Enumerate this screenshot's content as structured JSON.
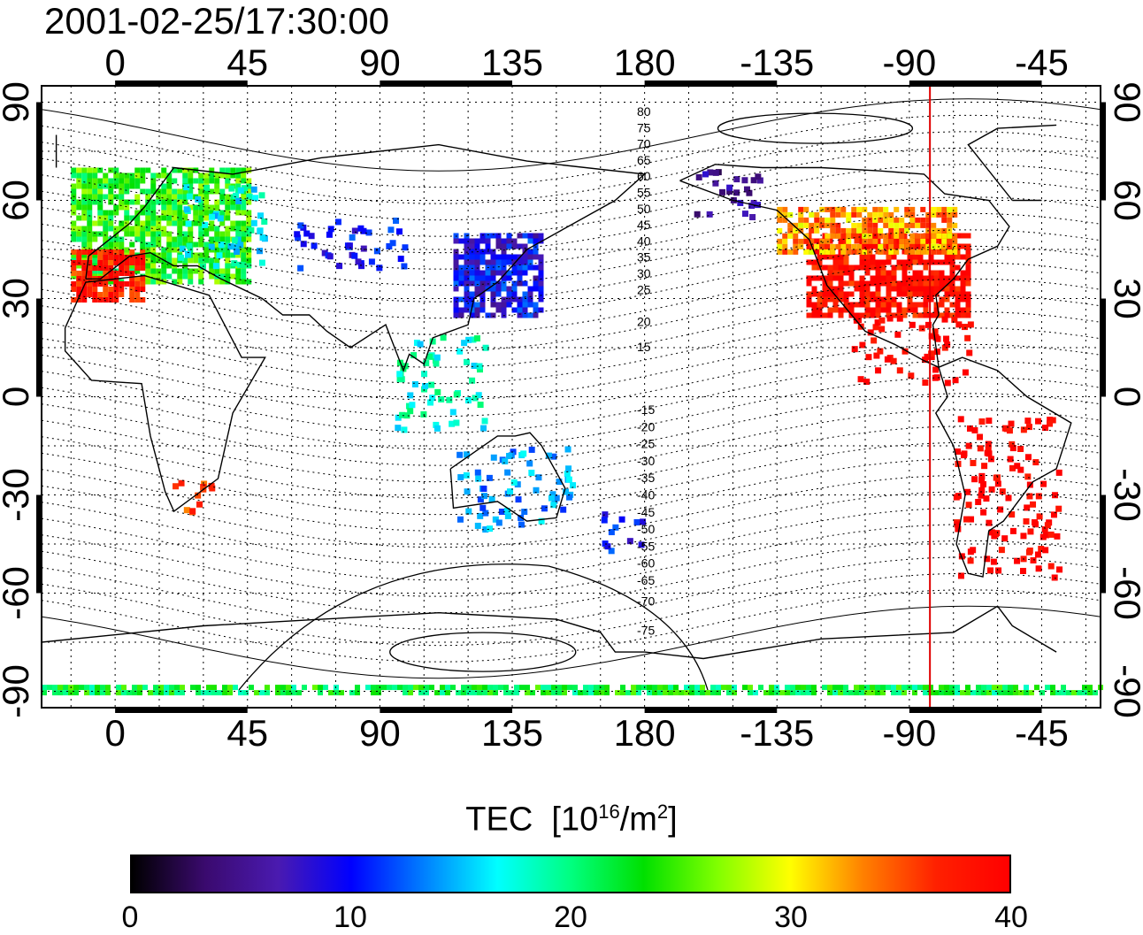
{
  "timestamp": "2001-02-25/17:30:00",
  "map": {
    "top_lon_ticks": [
      "0",
      "45",
      "90",
      "135",
      "180",
      "-135",
      "-90",
      "-45"
    ],
    "bottom_lon_ticks": [
      "0",
      "45",
      "90",
      "135",
      "180",
      "-135",
      "-90",
      "-45"
    ],
    "left_lat_ticks": [
      "90",
      "60",
      "30",
      "0",
      "-30",
      "-60",
      "-90"
    ],
    "right_lat_ticks": [
      "90",
      "60",
      "30",
      "0",
      "-30",
      "-60",
      "-90"
    ],
    "lon_range": [
      -25,
      335
    ],
    "lat_range": [
      -95,
      95
    ],
    "meridian_line_lon": -83,
    "meridian_line_color": "#e00000",
    "contour_labels_north": [
      "80",
      "75",
      "70",
      "65",
      "60",
      "55",
      "50",
      "45",
      "40",
      "35",
      "30",
      "25",
      "20",
      "15"
    ],
    "contour_labels_south": [
      "-15",
      "-20",
      "-25",
      "-30",
      "-35",
      "-40",
      "-45",
      "-50",
      "-55",
      "-60",
      "-65",
      "-70",
      "-75"
    ]
  },
  "colorbar": {
    "title": "TEC",
    "unit_prefix": "[10",
    "unit_exp": "16",
    "unit_mid": "/m",
    "unit_exp2": "2",
    "unit_suffix": "]",
    "ticks": [
      "0",
      "10",
      "20",
      "30",
      "40"
    ],
    "min": 0,
    "max": 40,
    "colors": [
      "#000000",
      "#3a0a6e",
      "#4a1ab0",
      "#0000ff",
      "#0080ff",
      "#00ffff",
      "#00ff80",
      "#00e000",
      "#80ff00",
      "#ffff00",
      "#ff8000",
      "#ff2000",
      "#ff0000"
    ]
  },
  "tec_regions": [
    {
      "name": "europe",
      "lon": [
        -15,
        45
      ],
      "lat": [
        35,
        70
      ],
      "tec": 24
    },
    {
      "name": "iberia-med",
      "lon": [
        -15,
        10
      ],
      "lat": [
        30,
        45
      ],
      "tec": 38
    },
    {
      "name": "east-europe",
      "lon": [
        20,
        50
      ],
      "lat": [
        40,
        65
      ],
      "tec": 17
    },
    {
      "name": "central-asia",
      "lon": [
        60,
        100
      ],
      "lat": [
        40,
        55
      ],
      "tec": 10
    },
    {
      "name": "east-asia",
      "lon": [
        115,
        145
      ],
      "lat": [
        25,
        50
      ],
      "tec": 9
    },
    {
      "name": "usa",
      "lon": [
        -125,
        -70
      ],
      "lat": [
        25,
        50
      ],
      "tec": 39
    },
    {
      "name": "alaska",
      "lon": [
        -165,
        -140
      ],
      "lat": [
        55,
        70
      ],
      "tec": 5
    },
    {
      "name": "canada-south",
      "lon": [
        -135,
        -75
      ],
      "lat": [
        45,
        58
      ],
      "tec": 33
    },
    {
      "name": "central-america",
      "lon": [
        -110,
        -70
      ],
      "lat": [
        5,
        25
      ],
      "tec": 40
    },
    {
      "name": "south-america",
      "lon": [
        -75,
        -40
      ],
      "lat": [
        -55,
        -5
      ],
      "tec": 40
    },
    {
      "name": "new-zealand",
      "lon": [
        165,
        180
      ],
      "lat": [
        -47,
        -35
      ],
      "tec": 10
    },
    {
      "name": "australia",
      "lon": [
        115,
        155
      ],
      "lat": [
        -40,
        -15
      ],
      "tec": 14
    },
    {
      "name": "south-africa",
      "lon": [
        15,
        33
      ],
      "lat": [
        -35,
        -25
      ],
      "tec": 36
    },
    {
      "name": "se-asia",
      "lon": [
        95,
        125
      ],
      "lat": [
        -10,
        20
      ],
      "tec": 18
    },
    {
      "name": "antarctic-edge",
      "lon": [
        -25,
        335
      ],
      "lat": [
        -90,
        -88
      ],
      "tec": 22
    }
  ]
}
